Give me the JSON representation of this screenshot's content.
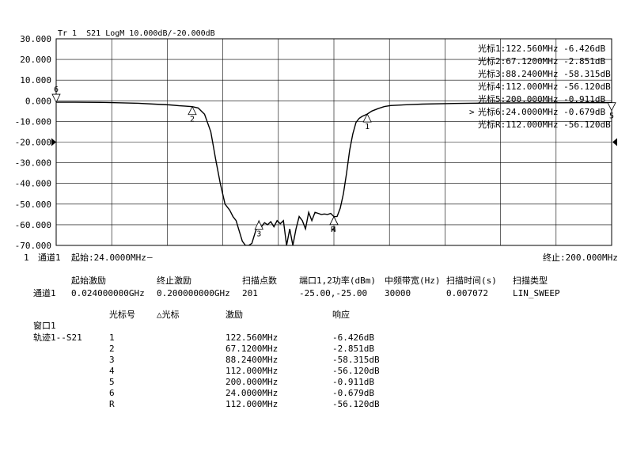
{
  "trace_header": "Tr 1  S21 LogM 10.000dB/-20.000dB",
  "chart_data": {
    "type": "line",
    "title": "Tr 1  S21 LogM 10.000dB/-20.000dB",
    "xlabel": "",
    "ylabel": "",
    "xlim": [
      24.0,
      200.0
    ],
    "ylim": [
      -70.0,
      30.0
    ],
    "grid": true,
    "legend": "none",
    "y_ticks": [
      "30.000",
      "20.000",
      "10.000",
      "0.000",
      "-10.000",
      "-20.000",
      "-30.000",
      "-40.000",
      "-50.000",
      "-60.000",
      "-70.000"
    ],
    "y_tick_values": [
      30,
      20,
      10,
      0,
      -10,
      -20,
      -30,
      -40,
      -50,
      -60,
      -70
    ],
    "reference_level": -20.0,
    "x": [
      24.0,
      30.0,
      40.0,
      50.0,
      55.0,
      60.0,
      63.0,
      65.0,
      67.12,
      69.0,
      71.0,
      73.0,
      74.5,
      76.0,
      77.5,
      79.0,
      80.0,
      81.0,
      82.0,
      83.0,
      84.0,
      85.0,
      86.0,
      87.0,
      88.24,
      89.0,
      90.0,
      91.0,
      92.0,
      93.0,
      94.0,
      95.0,
      96.0,
      97.0,
      98.0,
      99.0,
      100.0,
      101.0,
      102.0,
      103.0,
      104.0,
      105.0,
      106.0,
      107.0,
      108.0,
      109.0,
      110.0,
      111.0,
      112.0,
      113.0,
      114.0,
      115.0,
      116.0,
      117.0,
      118.0,
      119.0,
      120.0,
      121.0,
      122.56,
      124.0,
      126.0,
      128.0,
      130.0,
      135.0,
      140.0,
      150.0,
      160.0,
      170.0,
      180.0,
      190.0,
      200.0
    ],
    "y": [
      -0.68,
      -0.7,
      -0.8,
      -1.2,
      -1.6,
      -2.0,
      -2.4,
      -2.6,
      -2.85,
      -3.5,
      -6.5,
      -15.0,
      -28.0,
      -40.0,
      -50.0,
      -53.0,
      -56.0,
      -58.0,
      -63.0,
      -68.0,
      -70.0,
      -70.0,
      -69.0,
      -64.0,
      -58.3,
      -61.0,
      -59.0,
      -60.0,
      -58.5,
      -61.0,
      -58.0,
      -59.5,
      -58.0,
      -70.0,
      -62.0,
      -70.0,
      -62.0,
      -56.0,
      -58.0,
      -62.0,
      -54.0,
      -58.0,
      -54.0,
      -54.5,
      -55.0,
      -54.8,
      -55.0,
      -54.5,
      -56.1,
      -56.0,
      -52.0,
      -45.0,
      -35.0,
      -24.0,
      -16.0,
      -10.5,
      -8.5,
      -7.5,
      -6.43,
      -5.0,
      -3.8,
      -2.8,
      -2.3,
      -1.9,
      -1.6,
      -1.3,
      -1.1,
      -1.0,
      -0.95,
      -0.92,
      -0.91
    ],
    "markers": [
      {
        "label": "1",
        "x": 122.56,
        "y": -6.426
      },
      {
        "label": "2",
        "x": 67.12,
        "y": -2.851
      },
      {
        "label": "3",
        "x": 88.24,
        "y": -58.315
      },
      {
        "label": "4",
        "x": 112.0,
        "y": -56.12
      },
      {
        "label": "5",
        "x": 200.0,
        "y": -0.911
      },
      {
        "label": "6",
        "x": 24.0,
        "y": -0.679
      },
      {
        "label": "R",
        "x": 112.0,
        "y": -56.12
      }
    ]
  },
  "marker_readouts": [
    "光标1:122.560MHz -6.426dB",
    "光标2:67.1200MHz -2.851dB",
    "光标3:88.2400MHz -58.315dB",
    "光标4:112.000MHz -56.120dB",
    "光标5:200.000MHz -0.911dB",
    "光标6:24.0000MHz -0.679dB",
    "光标R:112.000MHz -56.120dB"
  ],
  "active_marker_index": 5,
  "active_marker_arrow": ">",
  "status": {
    "channel_num": "1",
    "channel_label": "通道1",
    "start_label": "起始:24.0000MHz",
    "start_dash": "—",
    "stop_label": "终止:200.000MHz"
  },
  "sweep_table": {
    "headers": [
      "起始激励",
      "终止激励",
      "扫描点数",
      "端口1,2功率(dBm)",
      "中频带宽(Hz)",
      "扫描时间(s)",
      "扫描类型"
    ],
    "row_label": "通道1",
    "row": [
      "0.024000000GHz",
      "0.200000000GHz",
      "201",
      "-25.00,-25.00",
      "30000",
      "0.007072",
      "LIN_SWEEP"
    ]
  },
  "marker_table": {
    "headers": [
      "光标号",
      "△光标",
      "激励",
      "响应"
    ],
    "window_label": "窗口1",
    "trace_label": "轨迹1--S21",
    "rows": [
      {
        "id": "1",
        "delta": "",
        "stim": "122.560MHz",
        "resp": "-6.426dB"
      },
      {
        "id": "2",
        "delta": "",
        "stim": "67.1200MHz",
        "resp": "-2.851dB"
      },
      {
        "id": "3",
        "delta": "",
        "stim": "88.2400MHz",
        "resp": "-58.315dB"
      },
      {
        "id": "4",
        "delta": "",
        "stim": "112.000MHz",
        "resp": "-56.120dB"
      },
      {
        "id": "5",
        "delta": "",
        "stim": "200.000MHz",
        "resp": "-0.911dB"
      },
      {
        "id": "6",
        "delta": "",
        "stim": "24.0000MHz",
        "resp": "-0.679dB"
      },
      {
        "id": "R",
        "delta": "",
        "stim": "112.000MHz",
        "resp": "-56.120dB"
      }
    ]
  },
  "colors": {
    "trace": "#000000",
    "grid": "#000000",
    "background": "#ffffff"
  }
}
